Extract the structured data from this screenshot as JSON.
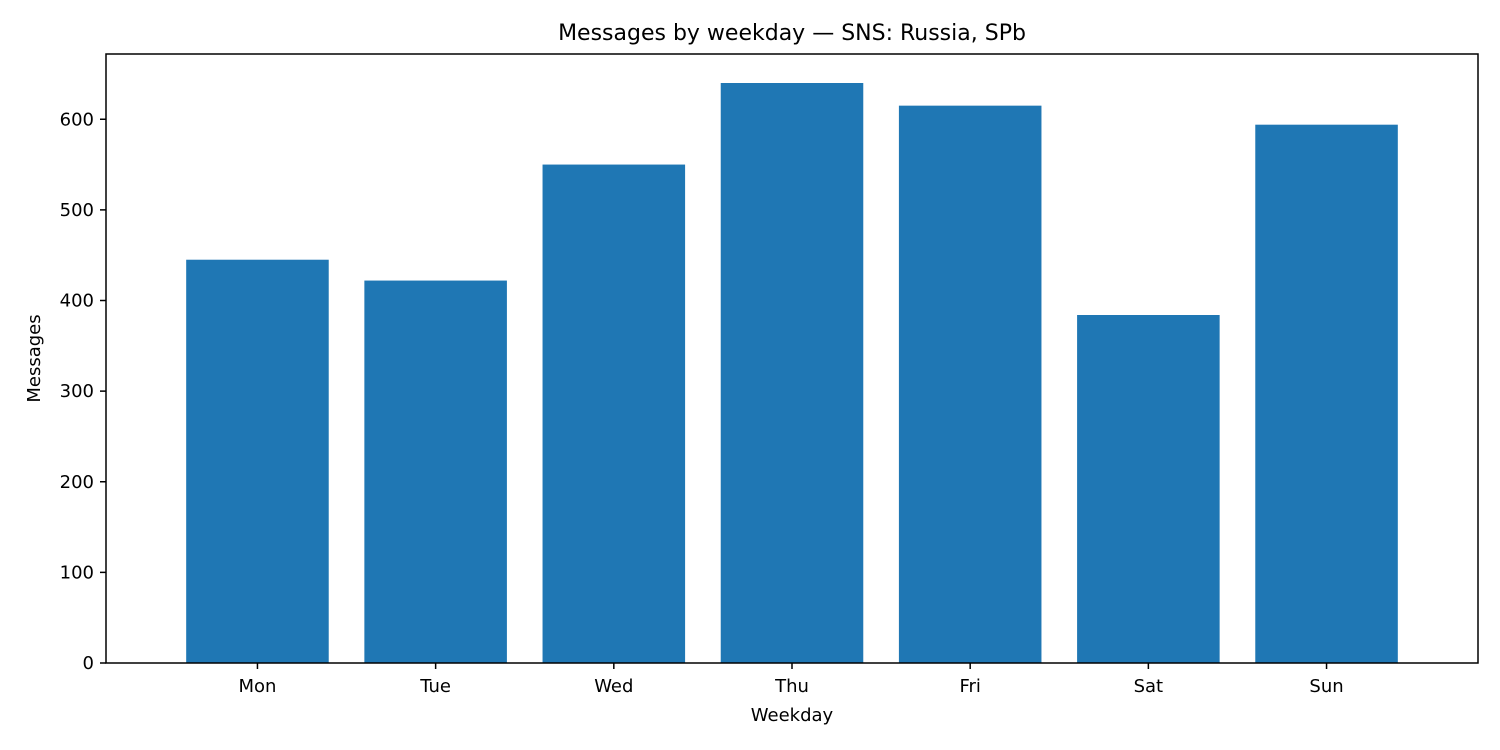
{
  "chart_data": {
    "type": "bar",
    "title": "Messages by weekday — SNS: Russia, SPb",
    "xlabel": "Weekday",
    "ylabel": "Messages",
    "categories": [
      "Mon",
      "Tue",
      "Wed",
      "Thu",
      "Fri",
      "Sat",
      "Sun"
    ],
    "values": [
      445,
      422,
      550,
      640,
      615,
      384,
      594
    ],
    "ylim": [
      0,
      672
    ],
    "yticks": [
      0,
      100,
      200,
      300,
      400,
      500,
      600
    ],
    "bar_color": "#1f77b4",
    "grid": false,
    "legend": "none"
  }
}
